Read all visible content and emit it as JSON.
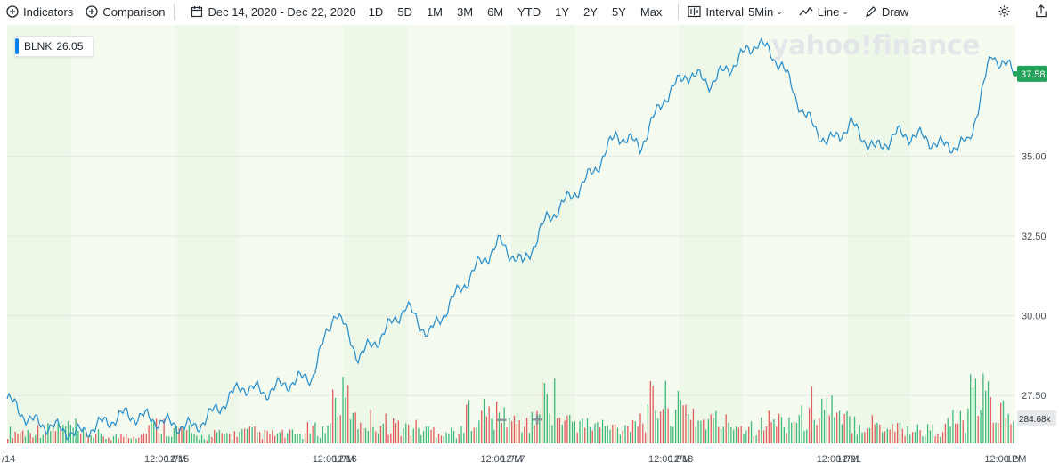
{
  "toolbar": {
    "indicators_label": "Indicators",
    "comparison_label": "Comparison",
    "date_range": "Dec 14, 2020 - Dec 22, 2020",
    "ranges": [
      "1D",
      "5D",
      "1M",
      "3M",
      "6M",
      "YTD",
      "1Y",
      "2Y",
      "5Y",
      "Max"
    ],
    "interval_label": "Interval",
    "interval_value": "5Min",
    "chart_type_label": "Line",
    "draw_label": "Draw"
  },
  "ticker": {
    "symbol": "BLNK",
    "value": "26.05"
  },
  "watermark": "yahoo!finance",
  "zoom": {
    "minus": "−",
    "plus": "+"
  },
  "chart_data": {
    "type": "line",
    "title": "",
    "series": [
      {
        "name": "BLNK",
        "color": "#1f8bd0",
        "x": [
          "12/14 09:30",
          "12/14 10:30",
          "12/14 11:30",
          "12/14 12:30",
          "12/14 13:30",
          "12/14 14:30",
          "12/14 15:30",
          "12/15 09:30",
          "12/15 10:30",
          "12/15 11:30",
          "12/15 12:30",
          "12/15 13:30",
          "12/15 14:30",
          "12/15 15:30",
          "12/16 09:30",
          "12/16 10:30",
          "12/16 11:30",
          "12/16 12:30",
          "12/16 13:30",
          "12/16 14:30",
          "12/16 15:30",
          "12/17 09:30",
          "12/17 10:30",
          "12/17 11:30",
          "12/17 12:30",
          "12/17 13:30",
          "12/17 14:30",
          "12/17 15:30",
          "12/18 09:30",
          "12/18 10:30",
          "12/18 11:30",
          "12/18 12:30",
          "12/18 13:30",
          "12/18 14:30",
          "12/18 15:30",
          "12/21 09:30",
          "12/21 10:30",
          "12/21 11:30",
          "12/21 12:30",
          "12/21 13:30",
          "12/21 14:30",
          "12/21 15:30",
          "12/22 09:30",
          "12/22 10:30"
        ],
        "values": [
          27.4,
          26.7,
          26.5,
          26.3,
          26.6,
          26.9,
          26.8,
          26.6,
          26.5,
          27.1,
          27.8,
          27.6,
          27.9,
          28.1,
          30.2,
          28.7,
          29.4,
          30.3,
          29.4,
          30.5,
          31.5,
          32.3,
          31.6,
          33.0,
          33.7,
          34.5,
          35.7,
          35.3,
          36.8,
          37.6,
          37.3,
          37.9,
          38.6,
          37.9,
          36.3,
          35.4,
          36.0,
          35.2,
          35.7,
          35.6,
          35.3,
          35.4,
          38.2,
          37.58
        ]
      }
    ],
    "ylim": [
      26.0,
      39.0
    ],
    "y_ticks": [
      "27.50",
      "30.00",
      "32.50",
      "35.00"
    ],
    "x_tick_labels": [
      "/14",
      "12:00 PM",
      "12/15",
      "12:00 PM",
      "12/16",
      "12:00 PM",
      "12/17",
      "12:00 PM",
      "12/18",
      "12:00 PM",
      "12/21",
      "12:00 PM",
      "12/"
    ],
    "last_price": "37.58",
    "last_price_color": "#21a35a",
    "volume": {
      "label": "284.68k",
      "up_color": "#29b36a",
      "down_color": "#e24a4a",
      "values": [
        0.25,
        0.3,
        0.35,
        0.2,
        0.15,
        0.2,
        0.4,
        0.3,
        0.15,
        0.2,
        0.25,
        0.2,
        0.2,
        0.3,
        0.95,
        0.5,
        0.45,
        0.35,
        0.3,
        0.25,
        0.7,
        0.6,
        0.45,
        1.0,
        0.5,
        0.4,
        0.35,
        0.55,
        0.9,
        0.75,
        0.5,
        0.45,
        0.4,
        0.5,
        0.55,
        0.85,
        0.5,
        0.45,
        0.4,
        0.3,
        0.3,
        0.5,
        1.0,
        0.7
      ]
    },
    "grid": true,
    "legend": "none"
  }
}
